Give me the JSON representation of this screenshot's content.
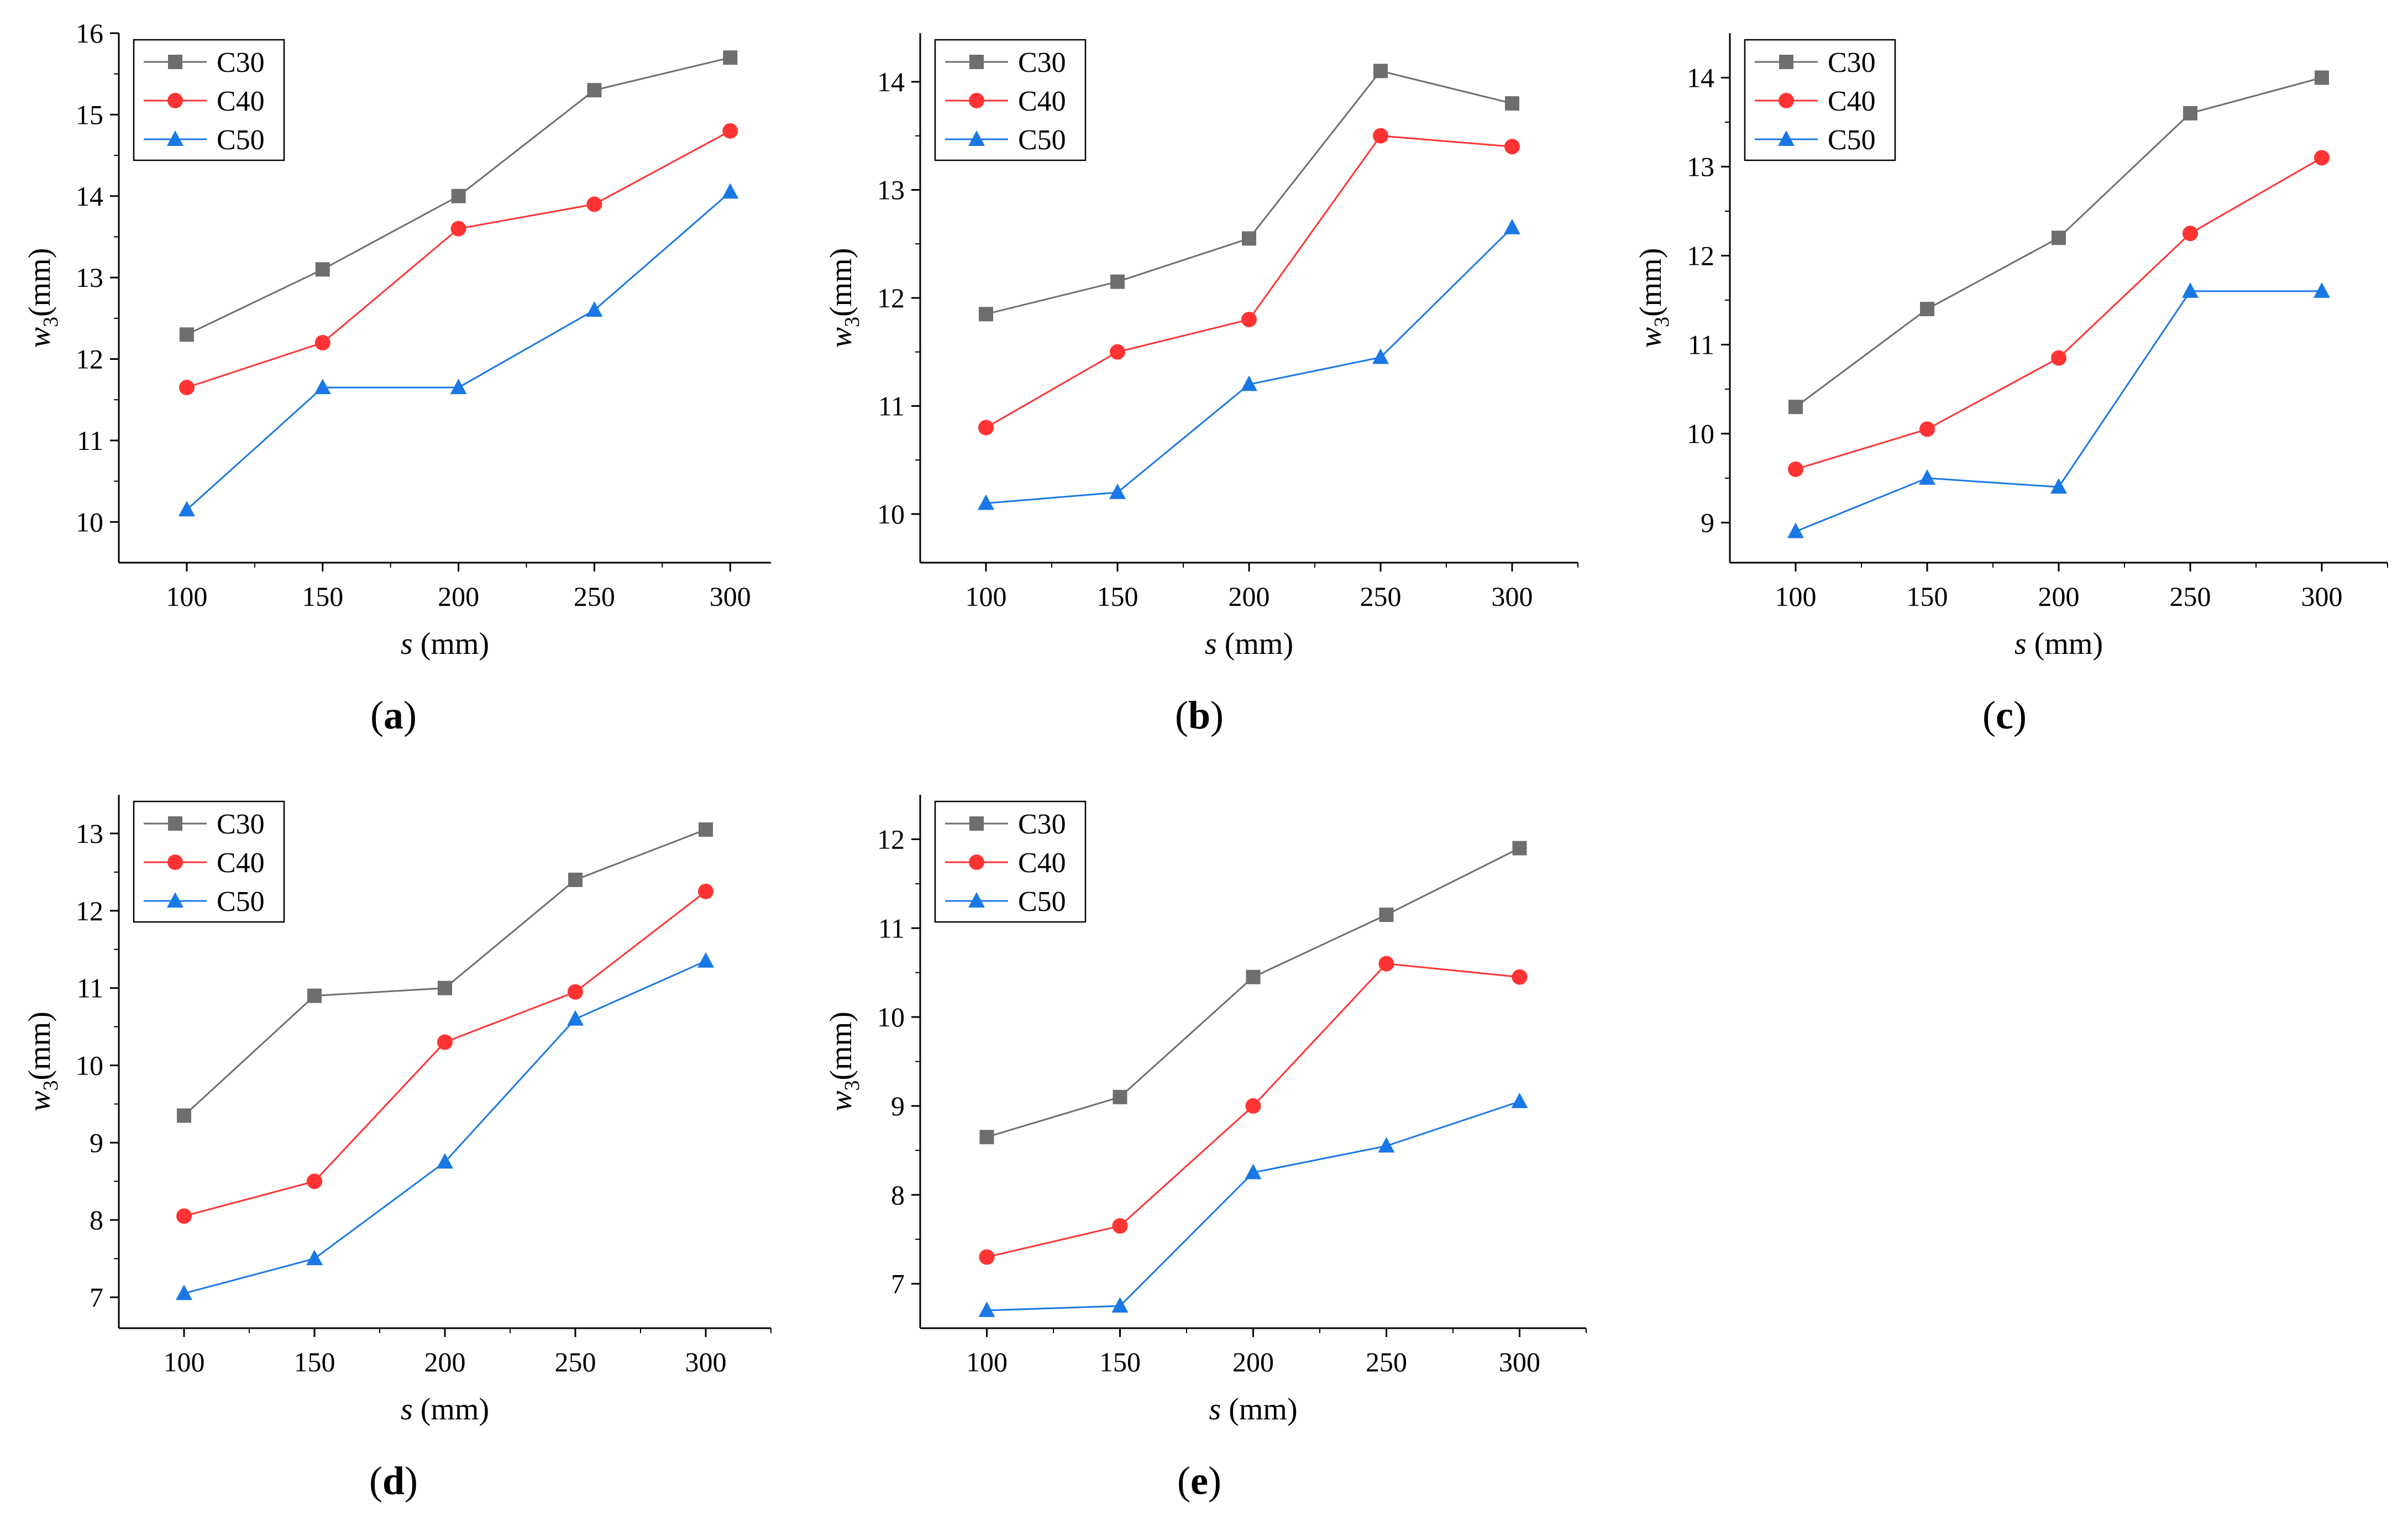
{
  "colors": {
    "C30": "#6e6e6e",
    "C40": "#ff3333",
    "C50": "#1a78e6",
    "axis": "#000000"
  },
  "chart_data": [
    {
      "id": "a",
      "caption": "a",
      "type": "line",
      "title": "",
      "xlabel_var": "s",
      "xlabel_unit": " (mm)",
      "ylabel_var": "w",
      "ylabel_sub": "3",
      "ylabel_unit": "(mm)",
      "x": [
        100,
        150,
        200,
        250,
        300
      ],
      "xlim": [
        75,
        315
      ],
      "ylim": [
        9.5,
        16
      ],
      "yticks": [
        10,
        11,
        12,
        13,
        14,
        15,
        16
      ],
      "series": [
        {
          "name": "C30",
          "marker": "square",
          "values": [
            12.3,
            13.1,
            14.0,
            15.3,
            15.7
          ]
        },
        {
          "name": "C40",
          "marker": "circle",
          "values": [
            11.65,
            12.2,
            13.6,
            13.9,
            14.8
          ]
        },
        {
          "name": "C50",
          "marker": "triangle",
          "values": [
            10.15,
            11.65,
            11.65,
            12.6,
            14.05
          ]
        }
      ],
      "legend": "top-left"
    },
    {
      "id": "b",
      "caption": "b",
      "type": "line",
      "title": "",
      "xlabel_var": "s",
      "xlabel_unit": " (mm)",
      "ylabel_var": "w",
      "ylabel_sub": "3",
      "ylabel_unit": "(mm)",
      "x": [
        100,
        150,
        200,
        250,
        300
      ],
      "xlim": [
        75,
        325
      ],
      "ylim": [
        9.55,
        14.45
      ],
      "yticks": [
        10,
        11,
        12,
        13,
        14
      ],
      "series": [
        {
          "name": "C30",
          "marker": "square",
          "values": [
            11.85,
            12.15,
            12.55,
            14.1,
            13.8
          ]
        },
        {
          "name": "C40",
          "marker": "circle",
          "values": [
            10.8,
            11.5,
            11.8,
            13.5,
            13.4
          ]
        },
        {
          "name": "C50",
          "marker": "triangle",
          "values": [
            10.1,
            10.2,
            11.2,
            11.45,
            12.65
          ]
        }
      ],
      "legend": "top-left"
    },
    {
      "id": "c",
      "caption": "c",
      "type": "line",
      "title": "",
      "xlabel_var": "s",
      "xlabel_unit": " (mm)",
      "ylabel_var": "w",
      "ylabel_sub": "3",
      "ylabel_unit": "(mm)",
      "x": [
        100,
        150,
        200,
        250,
        300
      ],
      "xlim": [
        75,
        325
      ],
      "ylim": [
        8.55,
        14.5
      ],
      "yticks": [
        9,
        10,
        11,
        12,
        13,
        14
      ],
      "series": [
        {
          "name": "C30",
          "marker": "square",
          "values": [
            10.3,
            11.4,
            12.2,
            13.6,
            14.0
          ]
        },
        {
          "name": "C40",
          "marker": "circle",
          "values": [
            9.6,
            10.05,
            10.85,
            12.25,
            13.1
          ]
        },
        {
          "name": "C50",
          "marker": "triangle",
          "values": [
            8.9,
            9.5,
            9.4,
            11.6,
            11.6
          ]
        }
      ],
      "legend": "top-left"
    },
    {
      "id": "d",
      "caption": "d",
      "type": "line",
      "title": "",
      "xlabel_var": "s",
      "xlabel_unit": " (mm)",
      "ylabel_var": "w",
      "ylabel_sub": "3",
      "ylabel_unit": "(mm)",
      "x": [
        100,
        150,
        200,
        250,
        300
      ],
      "xlim": [
        75,
        325
      ],
      "ylim": [
        6.6,
        13.5
      ],
      "yticks": [
        7,
        8,
        9,
        10,
        11,
        12,
        13
      ],
      "series": [
        {
          "name": "C30",
          "marker": "square",
          "values": [
            9.35,
            10.9,
            11.0,
            12.4,
            13.05
          ]
        },
        {
          "name": "C40",
          "marker": "circle",
          "values": [
            8.05,
            8.5,
            10.3,
            10.95,
            12.25
          ]
        },
        {
          "name": "C50",
          "marker": "triangle",
          "values": [
            7.05,
            7.5,
            8.75,
            10.6,
            11.35
          ]
        }
      ],
      "legend": "top-left"
    },
    {
      "id": "e",
      "caption": "e",
      "type": "line",
      "title": "",
      "xlabel_var": "s",
      "xlabel_unit": " (mm)",
      "ylabel_var": "w",
      "ylabel_sub": "3",
      "ylabel_unit": "(mm)",
      "x": [
        100,
        150,
        200,
        250,
        300
      ],
      "xlim": [
        75,
        325
      ],
      "ylim": [
        6.5,
        12.5
      ],
      "yticks": [
        7,
        8,
        9,
        10,
        11,
        12
      ],
      "series": [
        {
          "name": "C30",
          "marker": "square",
          "values": [
            8.65,
            9.1,
            10.45,
            11.15,
            11.9
          ]
        },
        {
          "name": "C40",
          "marker": "circle",
          "values": [
            7.3,
            7.65,
            9.0,
            10.6,
            10.45
          ]
        },
        {
          "name": "C50",
          "marker": "triangle",
          "values": [
            6.7,
            6.75,
            8.25,
            8.55,
            9.05
          ]
        }
      ],
      "legend": "top-left"
    }
  ]
}
